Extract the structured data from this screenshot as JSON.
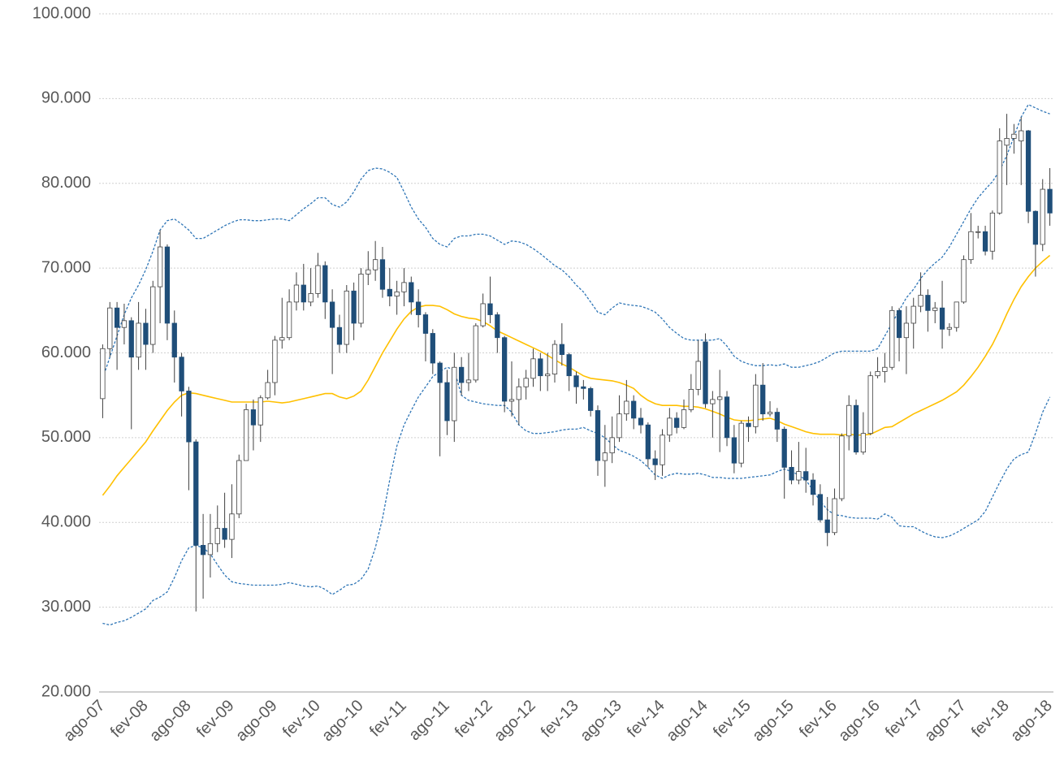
{
  "chart_data": {
    "type": "candlestick",
    "categories": [
      "ago-07",
      null,
      null,
      null,
      null,
      null,
      "fev-08",
      null,
      null,
      null,
      null,
      null,
      "ago-08",
      null,
      null,
      null,
      null,
      null,
      "fev-09",
      null,
      null,
      null,
      null,
      null,
      "ago-09",
      null,
      null,
      null,
      null,
      null,
      "fev-10",
      null,
      null,
      null,
      null,
      null,
      "ago-10",
      null,
      null,
      null,
      null,
      null,
      "fev-11",
      null,
      null,
      null,
      null,
      null,
      "ago-11",
      null,
      null,
      null,
      null,
      null,
      "fev-12",
      null,
      null,
      null,
      null,
      null,
      "ago-12",
      null,
      null,
      null,
      null,
      null,
      "fev-13",
      null,
      null,
      null,
      null,
      null,
      "ago-13",
      null,
      null,
      null,
      null,
      null,
      "fev-14",
      null,
      null,
      null,
      null,
      null,
      "ago-14",
      null,
      null,
      null,
      null,
      null,
      "fev-15",
      null,
      null,
      null,
      null,
      null,
      "ago-15",
      null,
      null,
      null,
      null,
      null,
      "fev-16",
      null,
      null,
      null,
      null,
      null,
      "ago-16",
      null,
      null,
      null,
      null,
      null,
      "fev-17",
      null,
      null,
      null,
      null,
      null,
      "ago-17",
      null,
      null,
      null,
      null,
      null,
      "fev-18",
      null,
      null,
      null,
      null,
      null,
      "ago-18"
    ],
    "open": [
      54600,
      60500,
      65300,
      63000,
      63800,
      59500,
      63500,
      61000,
      67800,
      72500,
      63500,
      59500,
      55500,
      49500,
      37300,
      36200,
      37500,
      39300,
      38000,
      41000,
      47300,
      53300,
      51500,
      54700,
      56500,
      61500,
      61800,
      66000,
      68000,
      66000,
      67000,
      70300,
      66000,
      63000,
      61000,
      67300,
      63500,
      69300,
      69800,
      71000,
      67500,
      66700,
      67200,
      68300,
      66000,
      64500,
      62300,
      58800,
      56500,
      52000,
      58300,
      56500,
      56800,
      63200,
      65800,
      64500,
      61800,
      54300,
      54500,
      56000,
      57000,
      59300,
      57300,
      57500,
      61000,
      59800,
      57300,
      56000,
      55800,
      53200,
      47300,
      48200,
      50000,
      52800,
      54300,
      52300,
      51500,
      47500,
      46800,
      50300,
      52300,
      51200,
      53300,
      55700,
      61300,
      54000,
      54500,
      54800,
      50000,
      47000,
      51700,
      51300,
      56200,
      52800,
      53000,
      51000,
      46500,
      45000,
      46000,
      45000,
      43300,
      40300,
      38800,
      42800,
      50200,
      53800,
      48300,
      50500,
      57300,
      57800,
      58300,
      65000,
      61800,
      63500,
      65500,
      66800,
      65000,
      65300,
      62800,
      63000,
      66000,
      71000,
      74300,
      74300,
      72000,
      76500,
      84500,
      85300,
      85000,
      86200,
      76700,
      72800,
      79300
    ],
    "high": [
      61000,
      66000,
      66000,
      65800,
      64200,
      66000,
      65200,
      68500,
      74500,
      72800,
      65000,
      60000,
      56000,
      49800,
      41000,
      41000,
      42000,
      43500,
      44500,
      48000,
      54000,
      54500,
      55000,
      58000,
      62000,
      66500,
      67500,
      69500,
      70500,
      70000,
      71800,
      70800,
      67500,
      64500,
      68000,
      68300,
      70000,
      72000,
      73200,
      72500,
      70000,
      68500,
      70000,
      69000,
      67500,
      64800,
      62800,
      59000,
      58000,
      60000,
      59500,
      60000,
      63500,
      67000,
      69000,
      64800,
      62000,
      59000,
      57000,
      58000,
      60500,
      60000,
      60000,
      61500,
      63500,
      60000,
      57800,
      56800,
      56000,
      53800,
      51500,
      52500,
      55000,
      56800,
      55000,
      53500,
      51800,
      48500,
      51000,
      53500,
      53000,
      54500,
      57500,
      61500,
      62300,
      55500,
      58000,
      55500,
      51500,
      52000,
      52500,
      57500,
      58800,
      54300,
      53500,
      51300,
      48500,
      49500,
      48800,
      45800,
      44500,
      43000,
      44000,
      50500,
      55000,
      54500,
      53000,
      57800,
      59500,
      60000,
      65500,
      65300,
      65500,
      66500,
      69500,
      67500,
      66000,
      68500,
      63500,
      66000,
      71500,
      76500,
      75000,
      75000,
      76800,
      86500,
      88200,
      87000,
      87800,
      86300,
      76800,
      80500,
      81800
    ],
    "low": [
      52300,
      59500,
      58000,
      61000,
      51000,
      58000,
      58000,
      60000,
      63500,
      61500,
      56500,
      52500,
      43800,
      29500,
      31000,
      33500,
      36500,
      37000,
      35800,
      40500,
      47300,
      48500,
      49500,
      54500,
      55000,
      60500,
      61500,
      65000,
      65000,
      65500,
      66500,
      64000,
      57500,
      60000,
      60000,
      61500,
      63000,
      68000,
      68500,
      66500,
      65500,
      64500,
      65500,
      64500,
      63000,
      59000,
      57500,
      47800,
      50300,
      49500,
      55000,
      55500,
      56500,
      63000,
      63500,
      60000,
      53000,
      52500,
      51500,
      54500,
      56000,
      55500,
      55500,
      56500,
      58500,
      55500,
      54000,
      54500,
      52500,
      45500,
      44200,
      47000,
      49500,
      52000,
      51000,
      50500,
      46500,
      45000,
      45500,
      49500,
      50500,
      51000,
      53000,
      55000,
      53500,
      50000,
      48300,
      49000,
      45800,
      46500,
      49500,
      50500,
      52000,
      52500,
      49500,
      42800,
      44500,
      44500,
      43500,
      42000,
      40000,
      37200,
      38500,
      42500,
      48500,
      48000,
      48000,
      50300,
      57000,
      56500,
      58000,
      59000,
      57500,
      60500,
      64800,
      62500,
      63500,
      60500,
      62000,
      62500,
      65800,
      70500,
      73500,
      71500,
      71000,
      76300,
      79800,
      83500,
      79800,
      75300,
      69000,
      72000,
      75000
    ],
    "close": [
      60500,
      65300,
      63000,
      63800,
      59500,
      63500,
      61000,
      67800,
      72500,
      63500,
      59500,
      55500,
      49500,
      37300,
      36200,
      37500,
      39300,
      38000,
      41000,
      47300,
      53300,
      51500,
      54700,
      56500,
      61500,
      61800,
      66000,
      68000,
      66000,
      67000,
      70300,
      66000,
      63000,
      61000,
      67300,
      63500,
      69300,
      69800,
      71000,
      67500,
      66700,
      67200,
      68300,
      66000,
      64500,
      62300,
      58800,
      56500,
      52000,
      58300,
      56500,
      56800,
      63200,
      65800,
      64500,
      61800,
      54300,
      54500,
      56000,
      57000,
      59300,
      57300,
      57500,
      61000,
      59800,
      57300,
      56000,
      55800,
      53200,
      47300,
      48200,
      50000,
      52800,
      54300,
      52300,
      51500,
      47500,
      46800,
      50300,
      52300,
      51200,
      53300,
      55700,
      59000,
      54000,
      54500,
      54800,
      50000,
      47000,
      51700,
      51300,
      56200,
      52800,
      53000,
      51000,
      46500,
      45000,
      46000,
      45000,
      43300,
      40300,
      38800,
      42800,
      50200,
      53800,
      48300,
      50500,
      57300,
      57800,
      58300,
      65000,
      61800,
      63500,
      65500,
      66800,
      65000,
      65300,
      62800,
      63000,
      66000,
      71000,
      74300,
      74300,
      72000,
      76500,
      85000,
      85300,
      85800,
      86200,
      76700,
      72800,
      79300,
      76500
    ],
    "up_color": "#ffffff",
    "down_color": "#1f4e79",
    "wick_color": "#404040",
    "lines": [
      {
        "color": "#ffc000",
        "style": "solid",
        "values": [
          43200,
          44300,
          45500,
          46500,
          47500,
          48500,
          49500,
          50800,
          52000,
          53200,
          54200,
          55000,
          55300,
          55200,
          55000,
          54800,
          54600,
          54400,
          54200,
          54200,
          54200,
          54200,
          54200,
          54300,
          54200,
          54100,
          54200,
          54400,
          54600,
          54800,
          55000,
          55200,
          55200,
          54800,
          54600,
          54900,
          55500,
          56800,
          58400,
          60000,
          61400,
          62800,
          64000,
          64900,
          65400,
          65600,
          65600,
          65500,
          65100,
          64600,
          64300,
          64100,
          64000,
          63700,
          63200,
          62600,
          62200,
          61800,
          61400,
          61000,
          60600,
          60200,
          59700,
          59200,
          58700,
          58300,
          57800,
          57300,
          57000,
          56900,
          56800,
          56700,
          56500,
          56200,
          55800,
          55000,
          54400,
          54000,
          53800,
          53800,
          53800,
          53700,
          53700,
          53600,
          53400,
          53100,
          52800,
          52400,
          52100,
          52000,
          52000,
          52100,
          52200,
          52300,
          52000,
          51600,
          51300,
          51000,
          50700,
          50500,
          50400,
          50400,
          50400,
          50300,
          50400,
          50300,
          50300,
          50400,
          50800,
          51200,
          51300,
          51800,
          52300,
          52800,
          53200,
          53600,
          54000,
          54400,
          54900,
          55400,
          56200,
          57200,
          58300,
          59600,
          61000,
          62700,
          64600,
          66300,
          67800,
          69000,
          70000,
          70800,
          71500
        ]
      },
      {
        "color": "#2e75b6",
        "style": "dashed",
        "values": [
          57000,
          59500,
          62000,
          64500,
          66500,
          68000,
          69800,
          72000,
          74500,
          75600,
          75800,
          75200,
          74500,
          73500,
          73500,
          74000,
          74500,
          75000,
          75400,
          75700,
          75700,
          75600,
          75600,
          75700,
          75800,
          75800,
          75600,
          76300,
          77000,
          77600,
          78300,
          78300,
          77500,
          77200,
          77800,
          79000,
          80500,
          81500,
          81800,
          81700,
          81300,
          80700,
          79000,
          77200,
          75800,
          74800,
          73500,
          72800,
          72500,
          73500,
          73800,
          73800,
          74000,
          74000,
          73800,
          73300,
          72800,
          73200,
          73100,
          72800,
          72300,
          71700,
          71000,
          70300,
          69800,
          69000,
          68000,
          67200,
          66000,
          64800,
          64500,
          65300,
          65900,
          65700,
          65600,
          65500,
          65200,
          64800,
          64000,
          63000,
          62300,
          61700,
          61500,
          61500,
          61500,
          61500,
          61700,
          60800,
          59600,
          59000,
          58700,
          58500,
          58500,
          58600,
          58500,
          58700,
          58300,
          58300,
          58500,
          58700,
          59000,
          59500,
          60000,
          60200,
          60200,
          60200,
          60200,
          60200,
          60500,
          62000,
          63500,
          65000,
          66500,
          67500,
          68800,
          69800,
          70600,
          71300,
          72500,
          74000,
          75500,
          77000,
          78300,
          79300,
          80200,
          81500,
          83300,
          85500,
          87800,
          89300,
          88900,
          88500,
          88200
        ]
      },
      {
        "color": "#2e75b6",
        "style": "dashed",
        "values": [
          28100,
          27900,
          28200,
          28400,
          28800,
          29300,
          29800,
          30800,
          31200,
          31800,
          33500,
          35500,
          37000,
          37300,
          37000,
          36300,
          35000,
          33800,
          33000,
          32800,
          32700,
          32600,
          32600,
          32600,
          32600,
          32700,
          32900,
          32700,
          32500,
          32400,
          32500,
          32100,
          31500,
          32000,
          32600,
          32700,
          33300,
          34500,
          37000,
          40500,
          45000,
          49000,
          51500,
          53200,
          54800,
          56000,
          57200,
          57800,
          58300,
          58000,
          55000,
          54400,
          54200,
          54000,
          53900,
          53800,
          53800,
          53000,
          51500,
          50800,
          50500,
          50500,
          50600,
          50700,
          50900,
          51000,
          51000,
          51200,
          50800,
          50500,
          50000,
          49200,
          48500,
          48200,
          47800,
          47300,
          46500,
          45600,
          45200,
          45600,
          45800,
          45700,
          45700,
          45800,
          45600,
          45300,
          45300,
          45200,
          45200,
          45200,
          45300,
          45400,
          45500,
          45600,
          46000,
          46300,
          46000,
          45600,
          45000,
          43800,
          42500,
          41500,
          40900,
          40800,
          40600,
          40500,
          40500,
          40500,
          40400,
          41000,
          40600,
          39600,
          39500,
          39500,
          39000,
          38600,
          38300,
          38200,
          38400,
          38800,
          39300,
          39800,
          40300,
          41300,
          43000,
          44700,
          46300,
          47500,
          48000,
          48300,
          50500,
          53000,
          54800
        ]
      }
    ],
    "ylim": [
      20000,
      100000
    ],
    "yticks": [
      {
        "value": 20000,
        "label": "20.000"
      },
      {
        "value": 30000,
        "label": "30.000"
      },
      {
        "value": 40000,
        "label": "40.000"
      },
      {
        "value": 50000,
        "label": "50.000"
      },
      {
        "value": 60000,
        "label": "60.000"
      },
      {
        "value": 70000,
        "label": "70.000"
      },
      {
        "value": 80000,
        "label": "80.000"
      },
      {
        "value": 90000,
        "label": "90.000"
      },
      {
        "value": 100000,
        "label": "100.000"
      }
    ],
    "grid": true
  }
}
